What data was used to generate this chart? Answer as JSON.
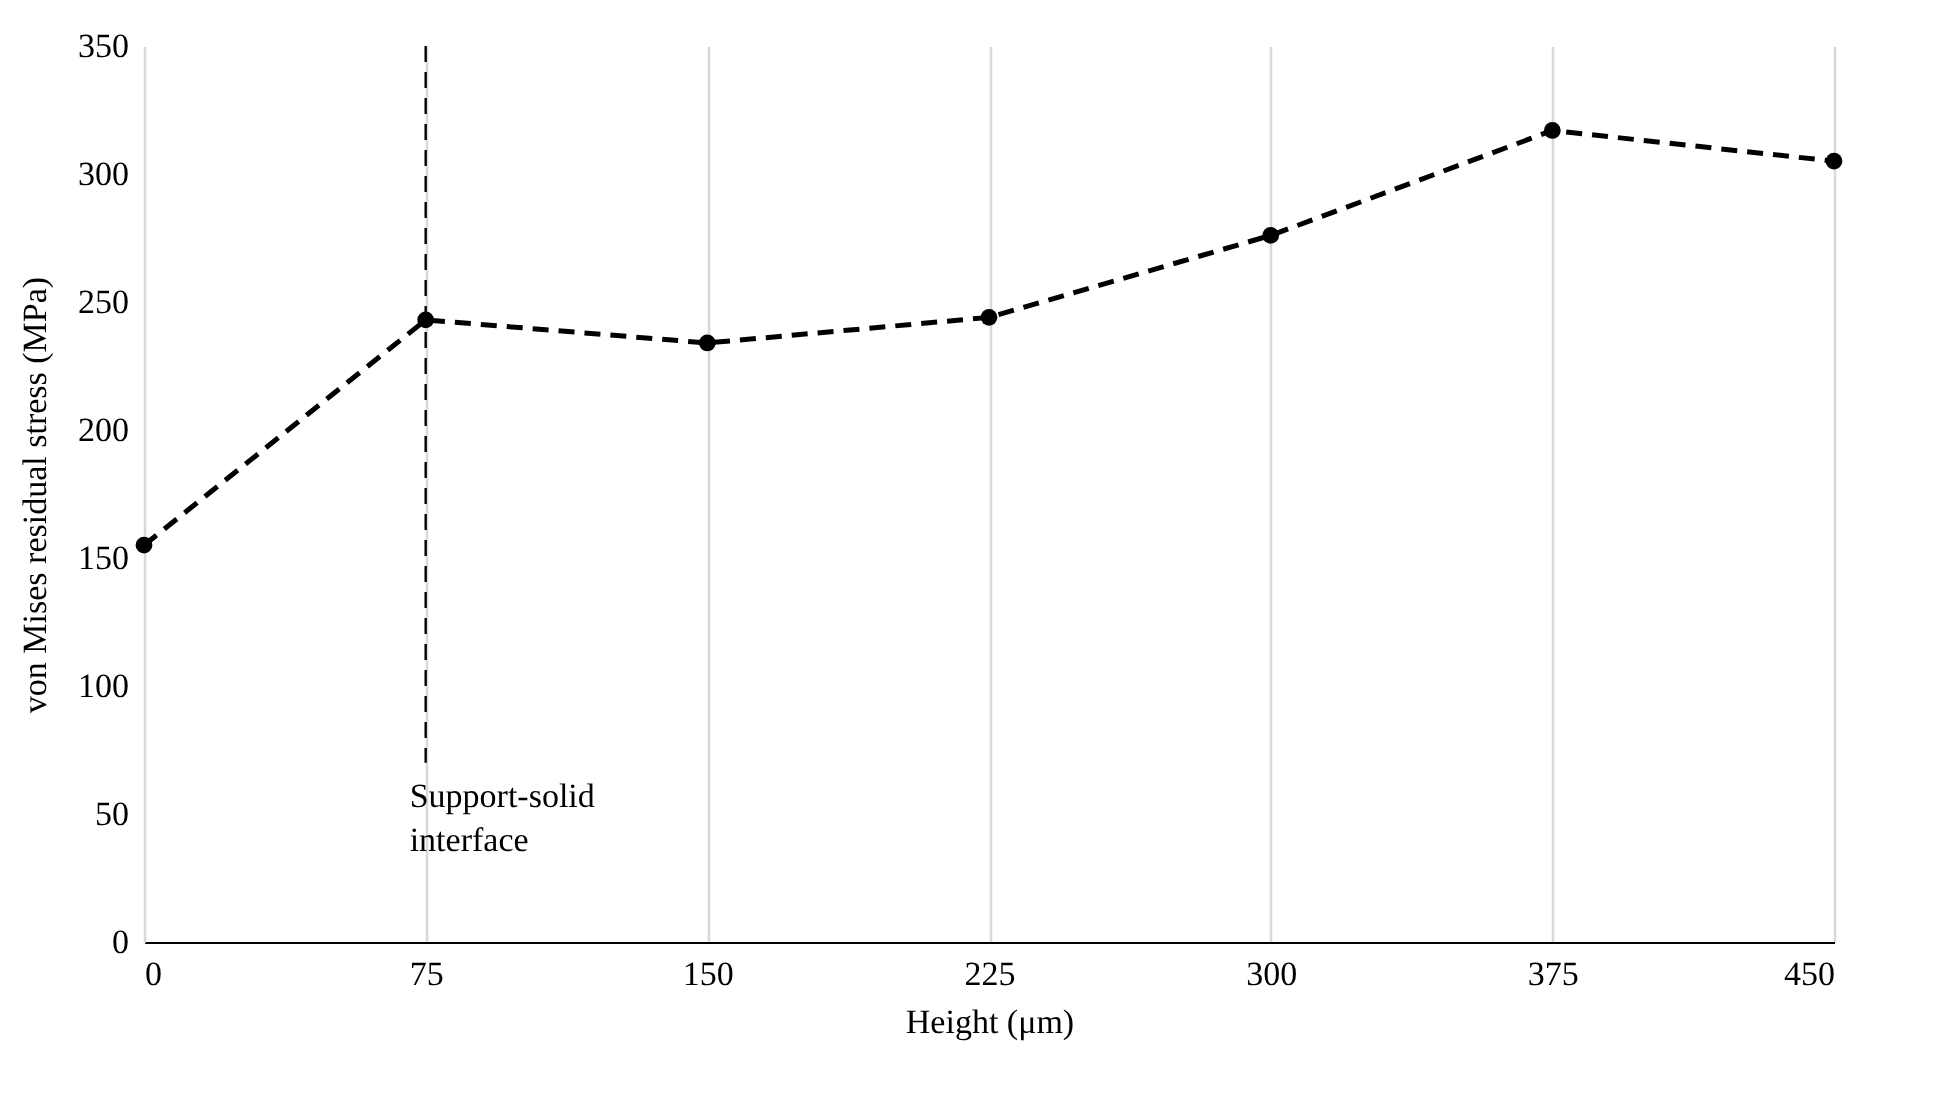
{
  "chart_data": {
    "type": "line",
    "xlabel": "Height (μm)",
    "ylabel": "von Mises residual stress (MPa)",
    "x": [
      0,
      75,
      150,
      225,
      300,
      375,
      450
    ],
    "series": [
      {
        "color": "#000000",
        "values": [
          155,
          243,
          234,
          244,
          276,
          317,
          305
        ]
      }
    ],
    "xlim": [
      0,
      450
    ],
    "xticks": [
      0,
      75,
      150,
      225,
      300,
      375,
      450
    ],
    "ylim": [
      0,
      350
    ],
    "yticks": [
      0,
      50,
      100,
      150,
      200,
      250,
      300,
      350
    ],
    "grid": "x",
    "marker": "circle",
    "line_style": "dashed",
    "ref_lines": [
      {
        "axis": "x",
        "value": 75,
        "label": "Support-solid interface",
        "color": "#000000",
        "line_style": "dashed"
      }
    ]
  }
}
